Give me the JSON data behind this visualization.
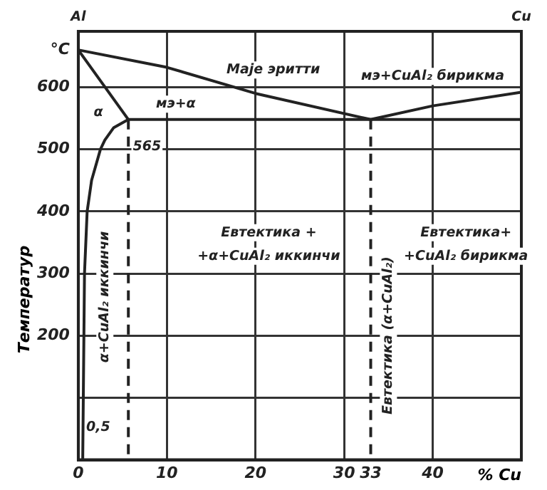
{
  "chart_data": {
    "type": "line",
    "xlabel": "% Cu",
    "ylabel": "Температур",
    "xlim": [
      0,
      50
    ],
    "ylim": [
      0,
      690
    ],
    "xticks": [
      0,
      10,
      20,
      30,
      33,
      40
    ],
    "yticks": [
      {
        "value": 100,
        "label": null
      },
      200,
      300,
      400,
      500,
      600,
      {
        "value": 660,
        "label": "°C"
      }
    ],
    "grid": true,
    "legend": false,
    "marker": "none",
    "series": [
      {
        "color": "#222222",
        "x": [
          0,
          10,
          20,
          33,
          40,
          50
        ],
        "values": [
          660,
          632,
          590,
          548,
          570,
          592
        ]
      },
      {
        "color": "#222222",
        "x": [
          0,
          5.65
        ],
        "values": [
          660,
          548
        ]
      },
      {
        "color": "#222222",
        "x": [
          5.65,
          50
        ],
        "values": [
          548,
          548
        ]
      },
      {
        "color": "#222222",
        "x": [
          5.65,
          4,
          3,
          2.5,
          1.5,
          1,
          0.7,
          0.5
        ],
        "values": [
          548,
          535,
          515,
          500,
          450,
          400,
          300,
          0
        ]
      },
      {
        "color": "#222222",
        "line_style": "dashed",
        "x": [
          5.65,
          5.65
        ],
        "values": [
          548,
          0
        ]
      },
      {
        "color": "#222222",
        "line_style": "dashed",
        "x": [
          33,
          33
        ],
        "values": [
          548,
          0
        ]
      }
    ],
    "annotations": [
      "Al",
      "Cu",
      "Мајe эритти",
      "мэ+α",
      "α",
      "565",
      "мэ+CuAl₂ бирикма",
      "Евтектика +",
      "+α+CuAl₂ иккинчи",
      "α+CuAl₂ иккинчи",
      "Евтектика (α+CuAl₂)",
      "Евтектика+",
      "+CuAl₂ бирикма",
      "0,5"
    ]
  }
}
